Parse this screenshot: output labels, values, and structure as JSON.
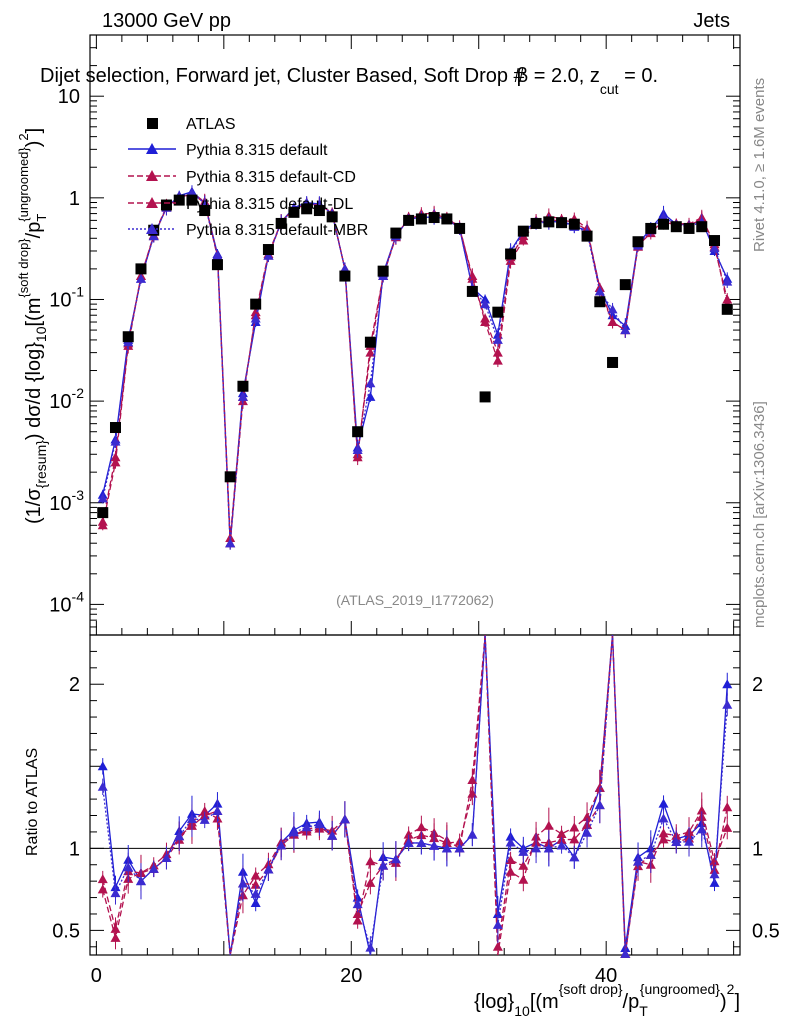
{
  "header": {
    "left": "13000 GeV pp",
    "right": "Jets"
  },
  "title": {
    "prefix": "Dijet selection, Forward jet, Cluster Based, Soft Drop #",
    "beta_glyph": "β",
    "eq": " = 2.0, z",
    "sub": "cut",
    "suffix": " = 0."
  },
  "side_labels": {
    "rivet": "Rivet 4.1.0, ≥ 1.6M events",
    "mcplots": "mcplots.cern.ch [arXiv:1306.3436]"
  },
  "analysis_id": "(ATLAS_2019_I1772062)",
  "yaxis_main": {
    "p1": "(1/σ",
    "p1sub": "{resum}",
    "p2": ") dσ/d {log}",
    "p2sub": "10",
    "p3": "[(m",
    "p3sup": "{soft drop}",
    "p4": "/p",
    "p4sub": "T",
    "p4sup": "{ungroomed}",
    "p5": ")",
    "p5sup": "2",
    "p6": "]"
  },
  "yaxis_ratio": "Ratio to ATLAS",
  "xaxis": {
    "p1": "{log}",
    "p1sub": "10",
    "p2": "[(m",
    "p2sup": "{soft drop}",
    "p3": "/p",
    "p3sub": "T",
    "p3sup": "{ungroomed}",
    "p4": ")",
    "p4sup": "2",
    "p5": "]"
  },
  "legend": [
    {
      "label": "ATLAS",
      "color": "#000000",
      "style": "square"
    },
    {
      "label": "Pythia 8.315 default",
      "color": "#1f1fd6",
      "style": "solid"
    },
    {
      "label": "Pythia 8.315 default-CD",
      "color": "#b3124f",
      "style": "dashed"
    },
    {
      "label": "Pythia 8.315 default-DL",
      "color": "#b3124f",
      "style": "dashed"
    },
    {
      "label": "Pythia 8.315 default-MBR",
      "color": "#3b2bd0",
      "style": "dotted"
    }
  ],
  "chart_data": {
    "type": "line",
    "xlim": [
      -0.5,
      50.5
    ],
    "ylim_main": [
      5e-05,
      40
    ],
    "ylim_ratio": [
      0.35,
      2.3
    ],
    "x_ticks": [
      0,
      20,
      40
    ],
    "main_y_ticks": [
      {
        "v": 10,
        "m": "10",
        "e": ""
      },
      {
        "v": 1,
        "m": "1",
        "e": ""
      },
      {
        "v": 0.1,
        "m": "10",
        "e": "-1"
      },
      {
        "v": 0.01,
        "m": "10",
        "e": "-2"
      },
      {
        "v": 0.001,
        "m": "10",
        "e": "-3"
      },
      {
        "v": 0.0001,
        "m": "10",
        "e": "-4"
      }
    ],
    "ratio_y_ticks": [
      {
        "v": 2,
        "label": "2"
      },
      {
        "v": 1,
        "label": "1"
      },
      {
        "v": 0.5,
        "label": "0.5"
      }
    ],
    "x": [
      0.5,
      1.5,
      2.5,
      3.5,
      4.5,
      5.5,
      6.5,
      7.5,
      8.5,
      9.5,
      10.5,
      11.5,
      12.5,
      13.5,
      14.5,
      15.5,
      16.5,
      17.5,
      18.5,
      19.5,
      20.5,
      21.5,
      22.5,
      23.5,
      24.5,
      25.5,
      26.5,
      27.5,
      28.5,
      29.5,
      30.5,
      31.5,
      32.5,
      33.5,
      34.5,
      35.5,
      36.5,
      37.5,
      38.5,
      39.5,
      40.5,
      41.5,
      42.5,
      43.5,
      44.5,
      45.5,
      46.5,
      47.5,
      48.5,
      49.5
    ],
    "atlas": [
      0.0008,
      0.0055,
      0.043,
      0.2,
      0.48,
      0.85,
      0.95,
      0.95,
      0.75,
      0.22,
      0.0018,
      0.014,
      0.09,
      0.31,
      0.56,
      0.72,
      0.78,
      0.75,
      0.65,
      0.17,
      0.005,
      0.038,
      0.19,
      0.45,
      0.6,
      0.62,
      0.64,
      0.62,
      0.5,
      0.12,
      0.011,
      0.075,
      0.28,
      0.47,
      0.56,
      0.58,
      0.57,
      0.55,
      0.42,
      0.095,
      0.024,
      0.14,
      0.37,
      0.5,
      0.55,
      0.52,
      0.5,
      0.52,
      0.38,
      0.08
    ],
    "series": [
      {
        "name": "Pythia 8.315 default",
        "color": "#1f1fd6",
        "dash": "",
        "marker": "triangle-up",
        "values": [
          0.0012,
          0.0042,
          0.04,
          0.16,
          0.42,
          0.8,
          1.05,
          1.15,
          0.9,
          0.28,
          0.0004,
          0.012,
          0.06,
          0.27,
          0.58,
          0.8,
          0.9,
          0.87,
          0.7,
          0.2,
          0.0035,
          0.011,
          0.18,
          0.42,
          0.62,
          0.64,
          0.65,
          0.62,
          0.5,
          0.13,
          0.1,
          0.045,
          0.3,
          0.47,
          0.58,
          0.58,
          0.6,
          0.52,
          0.48,
          0.13,
          0.07,
          0.055,
          0.35,
          0.5,
          0.7,
          0.55,
          0.54,
          0.6,
          0.3,
          0.16
        ]
      },
      {
        "name": "Pythia 8.315 default-CD",
        "color": "#b3124f",
        "dash": "6,3",
        "marker": "triangle-up",
        "values": [
          0.0006,
          0.0025,
          0.035,
          0.17,
          0.42,
          0.8,
          1.0,
          1.1,
          0.92,
          0.26,
          0.0004,
          0.01,
          0.075,
          0.28,
          0.58,
          0.78,
          0.86,
          0.84,
          0.72,
          0.2,
          0.0028,
          0.035,
          0.17,
          0.41,
          0.65,
          0.7,
          0.7,
          0.65,
          0.5,
          0.17,
          0.06,
          0.025,
          0.24,
          0.38,
          0.6,
          0.66,
          0.62,
          0.62,
          0.5,
          0.13,
          0.06,
          0.05,
          0.34,
          0.45,
          0.6,
          0.56,
          0.55,
          0.64,
          0.35,
          0.09
        ]
      },
      {
        "name": "Pythia 8.315 default-DL",
        "color": "#b3124f",
        "dash": "6,3",
        "marker": "triangle-up",
        "values": [
          0.00065,
          0.0028,
          0.037,
          0.17,
          0.43,
          0.82,
          1.02,
          1.08,
          0.9,
          0.27,
          0.00045,
          0.011,
          0.07,
          0.27,
          0.57,
          0.78,
          0.87,
          0.85,
          0.7,
          0.2,
          0.003,
          0.03,
          0.17,
          0.42,
          0.63,
          0.67,
          0.68,
          0.64,
          0.52,
          0.16,
          0.065,
          0.03,
          0.26,
          0.42,
          0.58,
          0.6,
          0.6,
          0.58,
          0.48,
          0.12,
          0.06,
          0.05,
          0.33,
          0.48,
          0.58,
          0.54,
          0.53,
          0.62,
          0.33,
          0.1
        ]
      },
      {
        "name": "Pythia 8.315 default-MBR",
        "color": "#3b2bd0",
        "dash": "2,2",
        "marker": "triangle-up",
        "values": [
          0.0011,
          0.004,
          0.038,
          0.16,
          0.42,
          0.8,
          1.02,
          1.12,
          0.88,
          0.27,
          0.0004,
          0.011,
          0.065,
          0.27,
          0.57,
          0.79,
          0.88,
          0.86,
          0.7,
          0.2,
          0.0033,
          0.015,
          0.17,
          0.42,
          0.62,
          0.64,
          0.65,
          0.62,
          0.5,
          0.13,
          0.09,
          0.04,
          0.29,
          0.46,
          0.56,
          0.58,
          0.58,
          0.52,
          0.46,
          0.12,
          0.08,
          0.05,
          0.34,
          0.48,
          0.65,
          0.54,
          0.52,
          0.58,
          0.32,
          0.15
        ]
      }
    ]
  }
}
